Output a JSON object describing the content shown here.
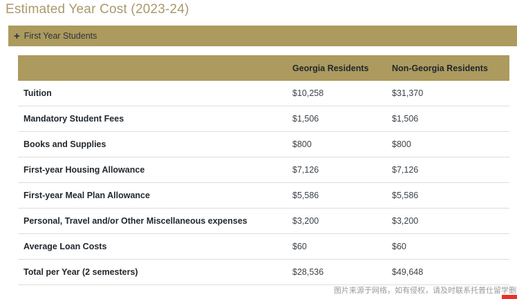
{
  "page": {
    "title": "Estimated Year Cost (2023-24)"
  },
  "accordion": {
    "expand_icon": "+",
    "label": "First Year Students"
  },
  "table": {
    "columns": [
      "",
      "Georgia Residents",
      "Non-Georgia Residents"
    ],
    "rows": [
      {
        "label": "Tuition",
        "georgia": "$10,258",
        "non_georgia": "$31,370"
      },
      {
        "label": "Mandatory Student Fees",
        "georgia": "$1,506",
        "non_georgia": "$1,506"
      },
      {
        "label": "Books and Supplies",
        "georgia": "$800",
        "non_georgia": "$800"
      },
      {
        "label": "First-year Housing Allowance",
        "georgia": "$7,126",
        "non_georgia": "$7,126"
      },
      {
        "label": "First-year Meal Plan Allowance",
        "georgia": "$5,586",
        "non_georgia": "$5,586"
      },
      {
        "label": "Personal, Travel and/or Other Miscellaneous expenses",
        "georgia": "$3,200",
        "non_georgia": "$3,200"
      },
      {
        "label": "Average Loan Costs",
        "georgia": "$60",
        "non_georgia": "$60"
      },
      {
        "label": "Total per Year (2 semesters)",
        "georgia": "$28,536",
        "non_georgia": "$49,648"
      }
    ]
  },
  "watermark": {
    "text": "图片来源于网络，如有侵权，请及时联系托普仕留学删除"
  },
  "colors": {
    "gold": "#AC9A5E",
    "title_gold": "#A9996B",
    "text_dark": "#21282E",
    "row_border": "#DDDDDD",
    "watermark_gray": "#9A9A9A",
    "logo_red": "#E8312A"
  }
}
